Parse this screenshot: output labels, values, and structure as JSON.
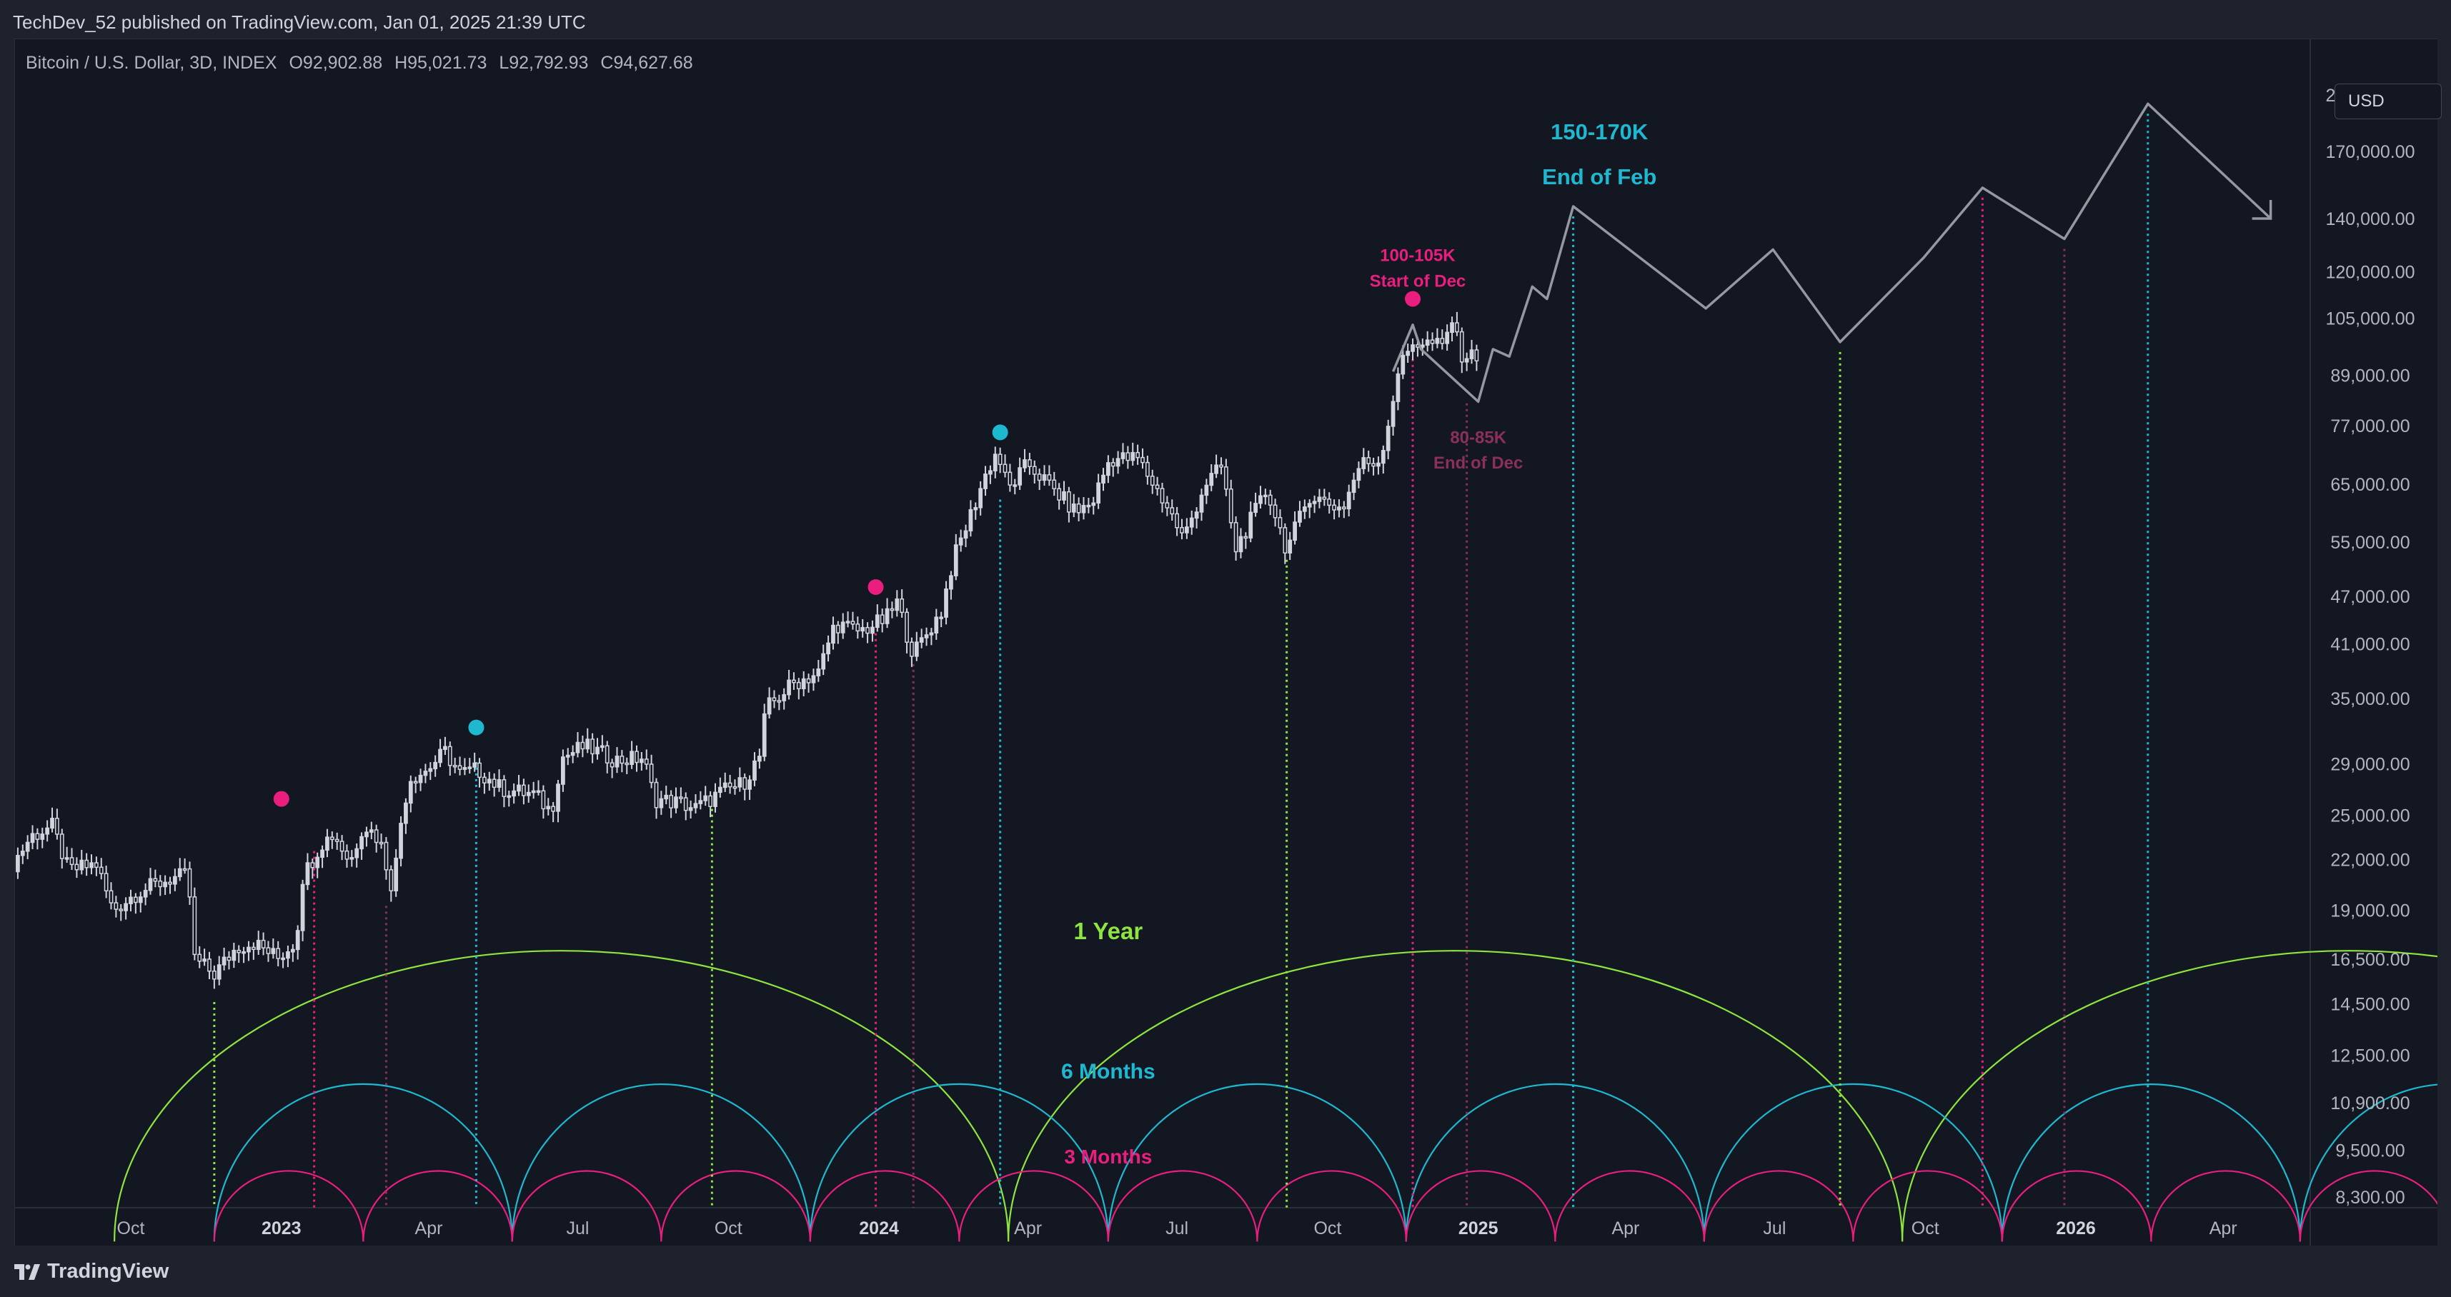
{
  "header": {
    "published_text": "TechDev_52 published on TradingView.com, Jan 01, 2025 21:39 UTC"
  },
  "symbol": {
    "name": "Bitcoin / U.S. Dollar, 3D, INDEX",
    "open": "O92,902.88",
    "high": "H95,021.73",
    "low": "L92,792.93",
    "close": "C94,627.68"
  },
  "currency_button": "USD",
  "footer": {
    "brand": "TradingView"
  },
  "colors": {
    "background": "#131722",
    "frame": "#1e222d",
    "candle": "#d1d4dc",
    "projection": "#9598a1",
    "pink": "#e91e7f",
    "cyan": "#1fb8d1",
    "green": "#8ee53f",
    "maroon": "#8b2f5c",
    "axis_text": "#b2b5be"
  },
  "chart_data": {
    "type": "candlestick",
    "interval": "3D",
    "y_scale": "log",
    "y_ticks": [
      "200,000.00",
      "170,000.00",
      "140,000.00",
      "120,000.00",
      "105,000.00",
      "89,000.00",
      "77,000.00",
      "65,000.00",
      "55,000.00",
      "47,000.00",
      "41,000.00",
      "35,000.00",
      "29,000.00",
      "25,000.00",
      "22,000.00",
      "19,000.00",
      "16,500.00",
      "14,500.00",
      "12,500.00",
      "10,900.00",
      "9,500.00",
      "8,300.00"
    ],
    "x_ticks": [
      {
        "label": "Oct",
        "date": "2022-10-01",
        "bold": false
      },
      {
        "label": "2023",
        "date": "2023-01-01",
        "bold": true
      },
      {
        "label": "Apr",
        "date": "2023-04-01",
        "bold": false
      },
      {
        "label": "Jul",
        "date": "2023-07-01",
        "bold": false
      },
      {
        "label": "Oct",
        "date": "2023-10-01",
        "bold": false
      },
      {
        "label": "2024",
        "date": "2024-01-01",
        "bold": true
      },
      {
        "label": "Apr",
        "date": "2024-04-01",
        "bold": false
      },
      {
        "label": "Jul",
        "date": "2024-07-01",
        "bold": false
      },
      {
        "label": "Oct",
        "date": "2024-10-01",
        "bold": false
      },
      {
        "label": "2025",
        "date": "2025-01-01",
        "bold": true
      },
      {
        "label": "Apr",
        "date": "2025-04-01",
        "bold": false
      },
      {
        "label": "Jul",
        "date": "2025-07-01",
        "bold": false
      },
      {
        "label": "Oct",
        "date": "2025-10-01",
        "bold": false
      },
      {
        "label": "2026",
        "date": "2026-01-01",
        "bold": true
      },
      {
        "label": "Apr",
        "date": "2026-04-01",
        "bold": false
      }
    ],
    "price_path": [
      [
        "2022-07-15",
        20800
      ],
      [
        "2022-08-01",
        23500
      ],
      [
        "2022-08-14",
        24200
      ],
      [
        "2022-08-24",
        21300
      ],
      [
        "2022-09-10",
        21700
      ],
      [
        "2022-09-20",
        19000
      ],
      [
        "2022-10-05",
        20000
      ],
      [
        "2022-10-25",
        20800
      ],
      [
        "2022-11-05",
        21000
      ],
      [
        "2022-11-09",
        16500
      ],
      [
        "2022-11-21",
        15800
      ],
      [
        "2022-12-05",
        17100
      ],
      [
        "2022-12-15",
        17300
      ],
      [
        "2022-12-30",
        16550
      ],
      [
        "2023-01-10",
        17400
      ],
      [
        "2023-01-14",
        20900
      ],
      [
        "2023-01-25",
        23000
      ],
      [
        "2023-02-02",
        23700
      ],
      [
        "2023-02-12",
        21800
      ],
      [
        "2023-02-20",
        24400
      ],
      [
        "2023-03-02",
        23300
      ],
      [
        "2023-03-10",
        20200
      ],
      [
        "2023-03-15",
        24500
      ],
      [
        "2023-03-20",
        27800
      ],
      [
        "2023-03-30",
        28400
      ],
      [
        "2023-04-11",
        30000
      ],
      [
        "2023-04-20",
        28200
      ],
      [
        "2023-05-01",
        28500
      ],
      [
        "2023-05-15",
        27000
      ],
      [
        "2023-06-05",
        26500
      ],
      [
        "2023-06-15",
        25200
      ],
      [
        "2023-06-21",
        29500
      ],
      [
        "2023-07-05",
        30500
      ],
      [
        "2023-07-25",
        29300
      ],
      [
        "2023-08-10",
        29500
      ],
      [
        "2023-08-17",
        26200
      ],
      [
        "2023-09-01",
        25900
      ],
      [
        "2023-09-11",
        25500
      ],
      [
        "2023-09-28",
        26800
      ],
      [
        "2023-10-10",
        27400
      ],
      [
        "2023-10-20",
        29600
      ],
      [
        "2023-10-24",
        34000
      ],
      [
        "2023-11-09",
        36500
      ],
      [
        "2023-11-25",
        37700
      ],
      [
        "2023-12-05",
        43500
      ],
      [
        "2023-12-20",
        42500
      ],
      [
        "2024-01-05",
        44000
      ],
      [
        "2024-01-12",
        46200
      ],
      [
        "2024-01-22",
        39800
      ],
      [
        "2024-02-08",
        45000
      ],
      [
        "2024-02-15",
        52000
      ],
      [
        "2024-02-28",
        61000
      ],
      [
        "2024-03-05",
        66000
      ],
      [
        "2024-03-13",
        71500
      ],
      [
        "2024-03-20",
        64000
      ],
      [
        "2024-04-01",
        69000
      ],
      [
        "2024-04-15",
        64500
      ],
      [
        "2024-04-30",
        60000
      ],
      [
        "2024-05-10",
        61500
      ],
      [
        "2024-05-21",
        70000
      ],
      [
        "2024-06-07",
        70000
      ],
      [
        "2024-06-25",
        61000
      ],
      [
        "2024-07-05",
        55500
      ],
      [
        "2024-07-18",
        65000
      ],
      [
        "2024-07-29",
        68500
      ],
      [
        "2024-08-05",
        53500
      ],
      [
        "2024-08-25",
        64000
      ],
      [
        "2024-09-06",
        53800
      ],
      [
        "2024-09-20",
        63000
      ],
      [
        "2024-10-10",
        60500
      ],
      [
        "2024-10-21",
        69000
      ],
      [
        "2024-11-01",
        69500
      ],
      [
        "2024-11-06",
        75500
      ],
      [
        "2024-11-13",
        90000
      ],
      [
        "2024-11-22",
        98000
      ],
      [
        "2024-12-05",
        97500
      ],
      [
        "2024-12-10",
        96500
      ],
      [
        "2024-12-17",
        106000
      ],
      [
        "2024-12-20",
        95000
      ],
      [
        "2024-12-28",
        94000
      ],
      [
        "2025-01-01",
        94600
      ]
    ],
    "projection_path": [
      [
        "2024-11-10",
        90000
      ],
      [
        "2024-11-22",
        103000
      ],
      [
        "2024-11-27",
        96000
      ],
      [
        "2025-01-01",
        82500
      ],
      [
        "2025-01-10",
        96000
      ],
      [
        "2025-01-20",
        94000
      ],
      [
        "2025-02-03",
        115000
      ],
      [
        "2025-02-12",
        111000
      ],
      [
        "2025-02-28",
        145000
      ],
      [
        "2025-05-20",
        108000
      ],
      [
        "2025-06-30",
        128000
      ],
      [
        "2025-08-10",
        98000
      ],
      [
        "2025-09-30",
        125000
      ],
      [
        "2025-11-05",
        153000
      ],
      [
        "2025-12-25",
        132000
      ],
      [
        "2026-02-14",
        195000
      ],
      [
        "2026-04-30",
        140000
      ]
    ],
    "arrow_end": {
      "date": "2026-04-30",
      "price": 140000
    },
    "markers": [
      {
        "date": "2023-01-01",
        "price": 26200,
        "color": "pink"
      },
      {
        "date": "2023-04-30",
        "price": 32200,
        "color": "cyan"
      },
      {
        "date": "2023-12-30",
        "price": 48300,
        "color": "pink"
      },
      {
        "date": "2024-03-15",
        "price": 75500,
        "color": "cyan"
      },
      {
        "date": "2024-11-22",
        "price": 111000,
        "color": "pink"
      }
    ],
    "vlines": [
      {
        "date": "2022-11-21",
        "price_top": 15000,
        "color": "green"
      },
      {
        "date": "2023-01-21",
        "price_top": 23200,
        "color": "pink"
      },
      {
        "date": "2023-03-06",
        "price_top": 19800,
        "color": "maroon"
      },
      {
        "date": "2023-04-30",
        "price_top": 30000,
        "color": "cyan"
      },
      {
        "date": "2023-09-21",
        "price_top": 26200,
        "color": "green"
      },
      {
        "date": "2023-12-30",
        "price_top": 43500,
        "color": "pink"
      },
      {
        "date": "2024-01-22",
        "price_top": 39800,
        "color": "maroon"
      },
      {
        "date": "2024-03-15",
        "price_top": 64000,
        "color": "cyan"
      },
      {
        "date": "2024-09-06",
        "price_top": 53800,
        "color": "green"
      },
      {
        "date": "2024-11-22",
        "price_top": 96000,
        "color": "pink"
      },
      {
        "date": "2024-12-25",
        "price_top": 84500,
        "color": "maroon"
      },
      {
        "date": "2025-02-28",
        "price_top": 145000,
        "color": "cyan"
      },
      {
        "date": "2025-08-10",
        "price_top": 98000,
        "color": "green"
      },
      {
        "date": "2025-11-05",
        "price_top": 153000,
        "color": "pink"
      },
      {
        "date": "2025-12-25",
        "price_top": 132000,
        "color": "maroon"
      },
      {
        "date": "2026-02-14",
        "price_top": 195000,
        "color": "cyan"
      }
    ],
    "cycles": [
      {
        "label": "1 Year",
        "color": "green",
        "start": "2022-09-21",
        "period_days": 546,
        "count": 4,
        "peak_price": 16900
      },
      {
        "label": "6 Months",
        "color": "cyan",
        "start": "2022-11-21",
        "period_days": 182,
        "count": 10,
        "peak_price": 11500
      },
      {
        "label": "3 Months",
        "color": "pink",
        "start": "2022-11-21",
        "period_days": 91,
        "count": 19,
        "peak_price": 8950
      }
    ],
    "cycle_baseline_price": 7300,
    "annotations": [
      {
        "text": "150-170K",
        "color": "cyan",
        "date": "2025-03-16",
        "price": 180000,
        "size": 31
      },
      {
        "text": "End of Feb",
        "color": "cyan",
        "date": "2025-03-16",
        "price": 158000,
        "size": 31
      },
      {
        "text": "100-105K",
        "color": "pink",
        "date": "2024-11-25",
        "price": 126000,
        "size": 24
      },
      {
        "text": "Start of Dec",
        "color": "pink",
        "date": "2024-11-25",
        "price": 117000,
        "size": 24
      },
      {
        "text": "80-85K",
        "color": "maroon",
        "date": "2025-01-01",
        "price": 74500,
        "size": 24
      },
      {
        "text": "End of Dec",
        "color": "maroon",
        "date": "2025-01-01",
        "price": 69200,
        "size": 24
      },
      {
        "text": "1 Year",
        "color": "green",
        "date": "2024-05-20",
        "price": 17900,
        "size": 33
      },
      {
        "text": "6 Months",
        "color": "cyan",
        "date": "2024-05-20",
        "price": 11950,
        "size": 30
      },
      {
        "text": "3 Months",
        "color": "pink",
        "date": "2024-05-20",
        "price": 9330,
        "size": 28
      }
    ]
  }
}
